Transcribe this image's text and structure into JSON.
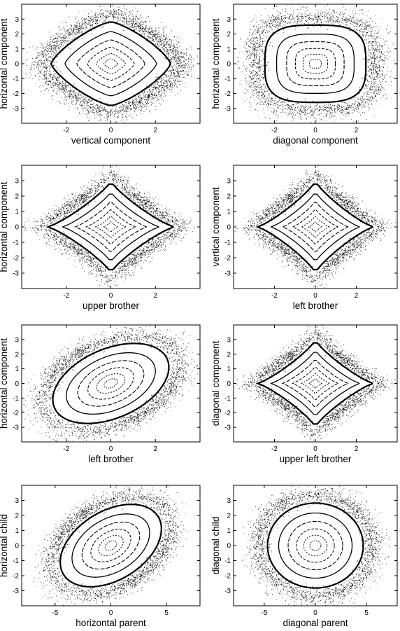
{
  "chart_data": [
    {
      "type": "scatter",
      "xlabel": "vertical component",
      "ylabel": "horizontal component",
      "xlim": [
        -4,
        4
      ],
      "ylim": [
        -4,
        4
      ],
      "xticks": [
        -2,
        0,
        2
      ],
      "yticks": [
        -3,
        -2,
        -1,
        0,
        1,
        2,
        3
      ],
      "grid": false,
      "shape": "diamond-square"
    },
    {
      "type": "scatter",
      "xlabel": "diagonal component",
      "ylabel": "horizontal component",
      "xlim": [
        -4,
        4
      ],
      "ylim": [
        -4,
        4
      ],
      "xticks": [
        -2,
        0,
        2
      ],
      "yticks": [
        -3,
        -2,
        -1,
        0,
        1,
        2,
        3
      ],
      "grid": false,
      "shape": "rounded-square"
    },
    {
      "type": "scatter",
      "xlabel": "upper brother",
      "ylabel": "horizontal component",
      "xlim": [
        -4,
        4
      ],
      "ylim": [
        -4,
        4
      ],
      "xticks": [
        -2,
        0,
        2
      ],
      "yticks": [
        -3,
        -2,
        -1,
        0,
        1,
        2,
        3
      ],
      "grid": false,
      "shape": "star"
    },
    {
      "type": "scatter",
      "xlabel": "left brother",
      "ylabel": "vertical component",
      "xlim": [
        -4,
        4
      ],
      "ylim": [
        -4,
        4
      ],
      "xticks": [
        -2,
        0,
        2
      ],
      "yticks": [
        -3,
        -2,
        -1,
        0,
        1,
        2,
        3
      ],
      "grid": false,
      "shape": "star"
    },
    {
      "type": "scatter",
      "xlabel": "left brother",
      "ylabel": "horizontal component",
      "xlim": [
        -4,
        4
      ],
      "ylim": [
        -4,
        4
      ],
      "xticks": [
        -2,
        0,
        2
      ],
      "yticks": [
        -3,
        -2,
        -1,
        0,
        1,
        2,
        3
      ],
      "grid": false,
      "shape": "tilted-ellipse"
    },
    {
      "type": "scatter",
      "xlabel": "upper left brother",
      "ylabel": "diagonal component",
      "xlim": [
        -4,
        4
      ],
      "ylim": [
        -4,
        4
      ],
      "xticks": [
        -2,
        0,
        2
      ],
      "yticks": [
        -3,
        -2,
        -1,
        0,
        1,
        2,
        3
      ],
      "grid": false,
      "shape": "star"
    },
    {
      "type": "scatter",
      "xlabel": "horizontal parent",
      "ylabel": "horizontal child",
      "xlim": [
        -8,
        8
      ],
      "ylim": [
        -4,
        4
      ],
      "xticks": [
        -5,
        0,
        5
      ],
      "yticks": [
        -3,
        -2,
        -1,
        0,
        1,
        2,
        3
      ],
      "grid": false,
      "shape": "tilted-ellipse"
    },
    {
      "type": "scatter",
      "xlabel": "diagonal parent",
      "ylabel": "diagonal child",
      "xlim": [
        -8,
        8
      ],
      "ylim": [
        -4,
        4
      ],
      "xticks": [
        -5,
        0,
        5
      ],
      "yticks": [
        -3,
        -2,
        -1,
        0,
        1,
        2,
        3
      ],
      "grid": false,
      "shape": "circle"
    }
  ]
}
